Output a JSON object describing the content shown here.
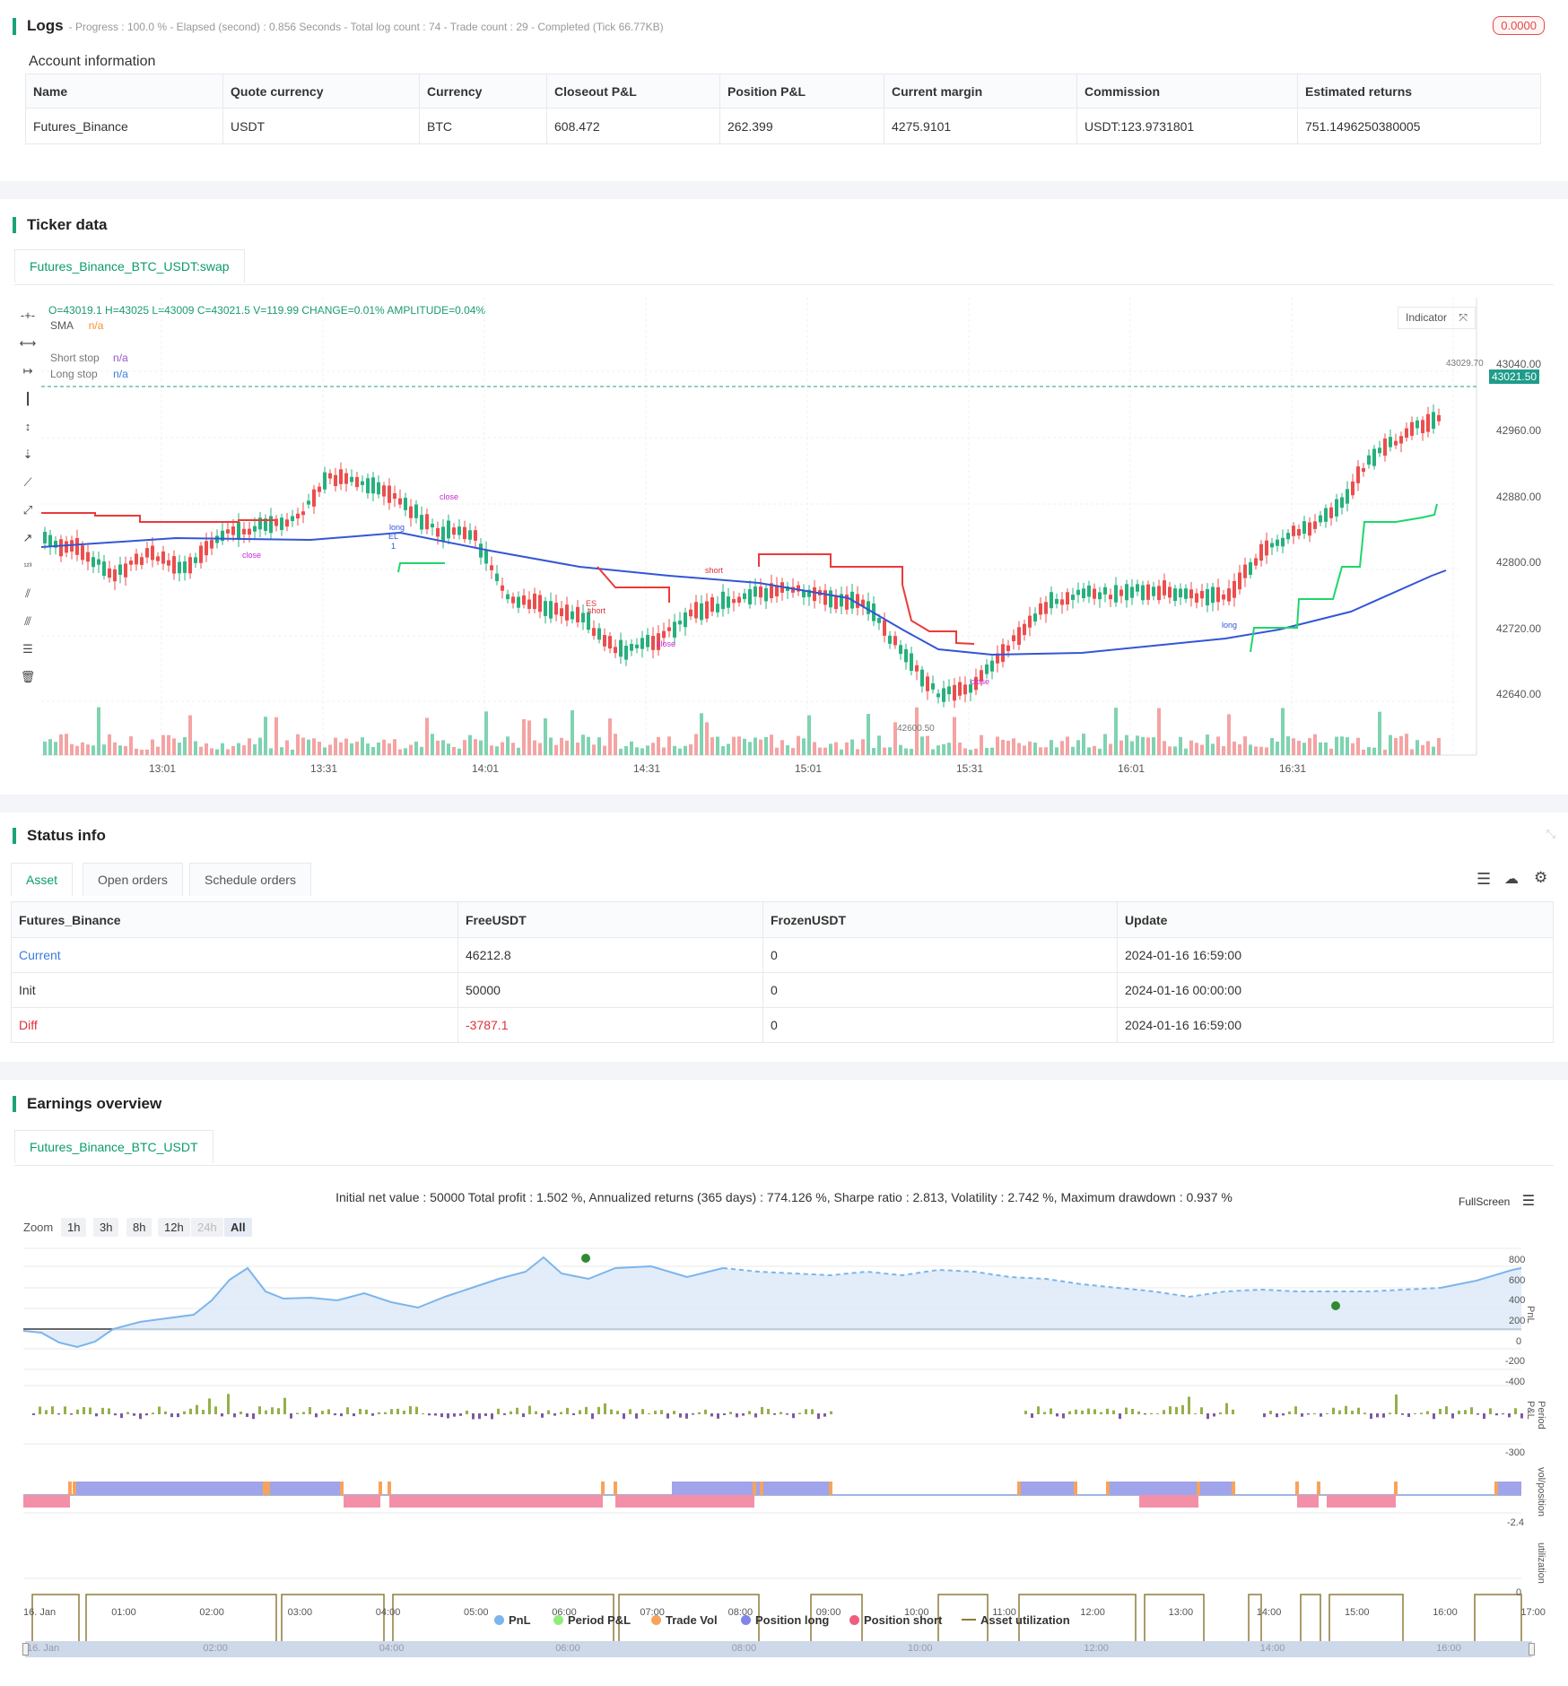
{
  "logs": {
    "title": "Logs",
    "subtitle": "- Progress : 100.0 % - Elapsed (second) : 0.856  Seconds - Total log count : 74 - Trade count : 29 - Completed (Tick 66.77KB)",
    "badge": "0.0000"
  },
  "account": {
    "title": "Account information",
    "headers": [
      "Name",
      "Quote currency",
      "Currency",
      "Closeout P&L",
      "Position P&L",
      "Current margin",
      "Commission",
      "Estimated returns"
    ],
    "row": [
      "Futures_Binance",
      "USDT",
      "BTC",
      "608.472",
      "262.399",
      "4275.9101",
      "USDT:123.9731801",
      "751.1496250380005"
    ]
  },
  "ticker": {
    "title": "Ticker data",
    "tab": "Futures_Binance_BTC_USDT:swap",
    "ohlc": "O=43019.1 H=43025 L=43009 C=43021.5 V=119.99 CHANGE=0.01% AMPLITUDE=0.04%",
    "sma_label": "SMA",
    "sma_value": "n/a",
    "short_stop_label": "Short stop",
    "short_stop_value": "n/a",
    "long_stop_label": "Long stop",
    "long_stop_value": "n/a",
    "indicator_btn": "Indicator",
    "price_ticks": [
      "43040.00",
      "42960.00",
      "42880.00",
      "42800.00",
      "42720.00",
      "42640.00"
    ],
    "current_price": "43021.50",
    "high_label": "43029.70",
    "low_label": "42600.50",
    "time_ticks": [
      "13:01",
      "13:31",
      "14:01",
      "14:31",
      "15:01",
      "15:31",
      "16:01",
      "16:31"
    ],
    "markers": {
      "close": "close",
      "long": "long",
      "short": "short",
      "el": "EL",
      "es": "ES",
      "one": "1"
    }
  },
  "status": {
    "title": "Status info",
    "tabs": [
      "Asset",
      "Open orders",
      "Schedule orders"
    ],
    "headers": [
      "Futures_Binance",
      "FreeUSDT",
      "FrozenUSDT",
      "Update"
    ],
    "rows": [
      [
        "Current",
        "46212.8",
        "0",
        "2024-01-16 16:59:00"
      ],
      [
        "Init",
        "50000",
        "0",
        "2024-01-16 00:00:00"
      ],
      [
        "Diff",
        "-3787.1",
        "0",
        "2024-01-16 16:59:00"
      ]
    ]
  },
  "earnings": {
    "title": "Earnings overview",
    "tab": "Futures_Binance_BTC_USDT",
    "summary": "Initial net value : 50000 Total profit : 1.502 %, Annualized returns (365 days) : 774.126 %, Sharpe ratio : 2.813, Volatility : 2.742 %, Maximum drawdown : 0.937 %",
    "fullscreen": "FullScreen",
    "zoom_label": "Zoom",
    "zoom_options": [
      "1h",
      "3h",
      "8h",
      "12h",
      "24h",
      "All"
    ],
    "pnl_ticks": [
      "800",
      "600",
      "400",
      "200",
      "0",
      "-200",
      "-400"
    ],
    "period_ticks": [
      "-300"
    ],
    "vol_ticks": [
      "-2.4"
    ],
    "util_ticks": [
      "0"
    ],
    "axis_titles": [
      "PnL",
      "Period P&L",
      "vol/position",
      "utilization"
    ],
    "time_ticks": [
      "16. Jan",
      "01:00",
      "02:00",
      "03:00",
      "04:00",
      "05:00",
      "06:00",
      "07:00",
      "08:00",
      "09:00",
      "10:00",
      "11:00",
      "12:00",
      "13:00",
      "14:00",
      "15:00",
      "16:00",
      "17:00"
    ],
    "nav_ticks": [
      "16. Jan",
      "02:00",
      "04:00",
      "06:00",
      "08:00",
      "10:00",
      "12:00",
      "14:00",
      "16:00"
    ],
    "legend": [
      {
        "name": "PnL",
        "color": "#7cb5ec"
      },
      {
        "name": "Period P&L",
        "color": "#90ed7d"
      },
      {
        "name": "Trade Vol",
        "color": "#f7a35c"
      },
      {
        "name": "Position long",
        "color": "#8085e9"
      },
      {
        "name": "Position short",
        "color": "#f15c80"
      },
      {
        "name": "Asset utilization",
        "color": "#8d7b3c"
      }
    ]
  }
}
